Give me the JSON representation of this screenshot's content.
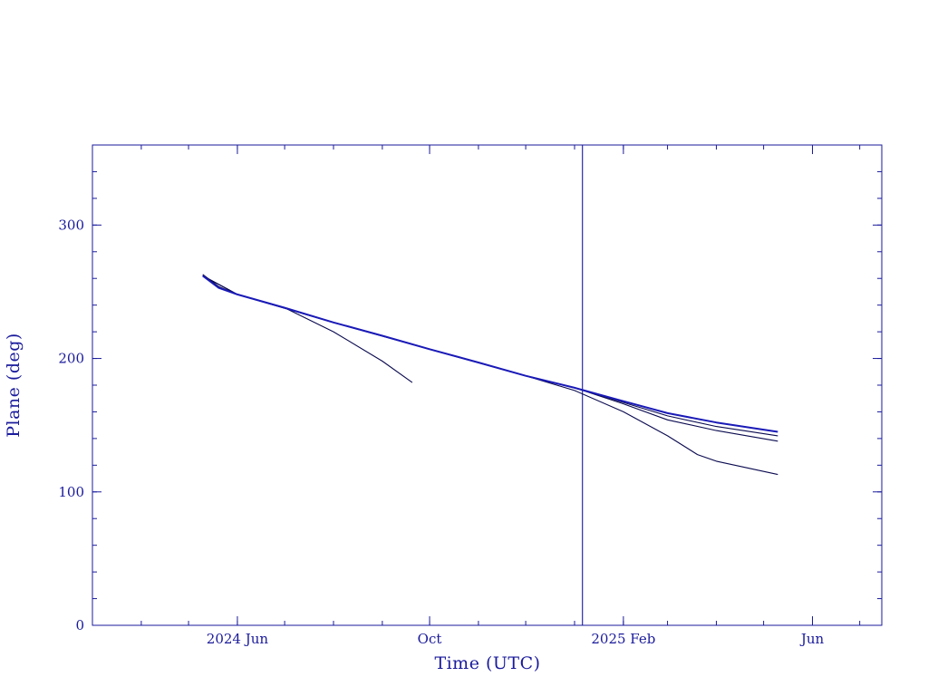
{
  "chart_data": {
    "type": "line",
    "xlabel": "Time (UTC)",
    "ylabel": "Plane (deg)",
    "xlim": [
      "2024-03-01",
      "2025-07-15"
    ],
    "ylim": [
      0,
      360
    ],
    "y_ticks": [
      0,
      100,
      200,
      300
    ],
    "y_minor_step": 20,
    "x_ticks": [
      {
        "date": "2024-06-01",
        "label": "2024 Jun"
      },
      {
        "date": "2024-10-01",
        "label": "Oct"
      },
      {
        "date": "2025-02-01",
        "label": "2025 Feb"
      },
      {
        "date": "2025-06-01",
        "label": "Jun"
      }
    ],
    "x_minor_ticks": [
      "2024-03-01",
      "2024-04-01",
      "2024-05-01",
      "2024-06-01",
      "2024-07-01",
      "2024-08-01",
      "2024-09-01",
      "2024-10-01",
      "2024-11-01",
      "2024-12-01",
      "2025-01-01",
      "2025-02-01",
      "2025-03-01",
      "2025-04-01",
      "2025-05-01",
      "2025-06-01",
      "2025-07-01"
    ],
    "vertical_line": {
      "date": "2025-01-06"
    },
    "grid": false,
    "colors": {
      "axis": "#1a1a9c",
      "vline": "#2a2ab0",
      "series": "#0a0a50",
      "main_series": "#1a1ab8"
    },
    "series": [
      {
        "main": true,
        "points": [
          [
            "2024-05-10",
            262
          ],
          [
            "2024-05-20",
            253
          ],
          [
            "2024-06-01",
            248
          ],
          [
            "2024-07-01",
            238
          ],
          [
            "2024-08-01",
            227
          ],
          [
            "2024-09-01",
            217
          ],
          [
            "2024-10-01",
            207
          ],
          [
            "2024-11-01",
            197
          ],
          [
            "2024-12-01",
            187
          ],
          [
            "2025-01-01",
            178
          ],
          [
            "2025-02-01",
            168
          ],
          [
            "2025-03-01",
            159
          ],
          [
            "2025-04-01",
            152
          ],
          [
            "2025-05-10",
            145
          ]
        ]
      },
      {
        "points": [
          [
            "2024-05-10",
            263
          ],
          [
            "2024-05-20",
            254
          ],
          [
            "2024-06-01",
            248
          ],
          [
            "2024-07-01",
            238
          ],
          [
            "2024-08-01",
            220
          ],
          [
            "2024-09-01",
            198
          ],
          [
            "2024-09-20",
            182
          ]
        ]
      },
      {
        "points": [
          [
            "2024-05-10",
            262
          ],
          [
            "2024-06-01",
            248
          ],
          [
            "2024-08-01",
            227
          ],
          [
            "2024-10-01",
            207
          ],
          [
            "2024-12-01",
            187
          ],
          [
            "2025-01-01",
            176
          ],
          [
            "2025-02-01",
            160
          ],
          [
            "2025-03-01",
            142
          ],
          [
            "2025-03-20",
            128
          ],
          [
            "2025-04-01",
            123
          ],
          [
            "2025-05-10",
            113
          ]
        ]
      },
      {
        "points": [
          [
            "2024-05-10",
            262
          ],
          [
            "2024-06-01",
            248
          ],
          [
            "2024-08-01",
            227
          ],
          [
            "2024-10-01",
            207
          ],
          [
            "2024-12-01",
            187
          ],
          [
            "2025-01-01",
            178
          ],
          [
            "2025-02-01",
            166
          ],
          [
            "2025-03-01",
            154
          ],
          [
            "2025-04-01",
            146
          ],
          [
            "2025-05-10",
            138
          ]
        ]
      },
      {
        "points": [
          [
            "2024-05-10",
            262
          ],
          [
            "2024-06-01",
            248
          ],
          [
            "2024-08-01",
            227
          ],
          [
            "2024-10-01",
            207
          ],
          [
            "2024-12-01",
            187
          ],
          [
            "2025-01-01",
            178
          ],
          [
            "2025-02-01",
            167
          ],
          [
            "2025-03-01",
            157
          ],
          [
            "2025-04-01",
            149
          ],
          [
            "2025-05-10",
            142
          ]
        ]
      }
    ]
  }
}
